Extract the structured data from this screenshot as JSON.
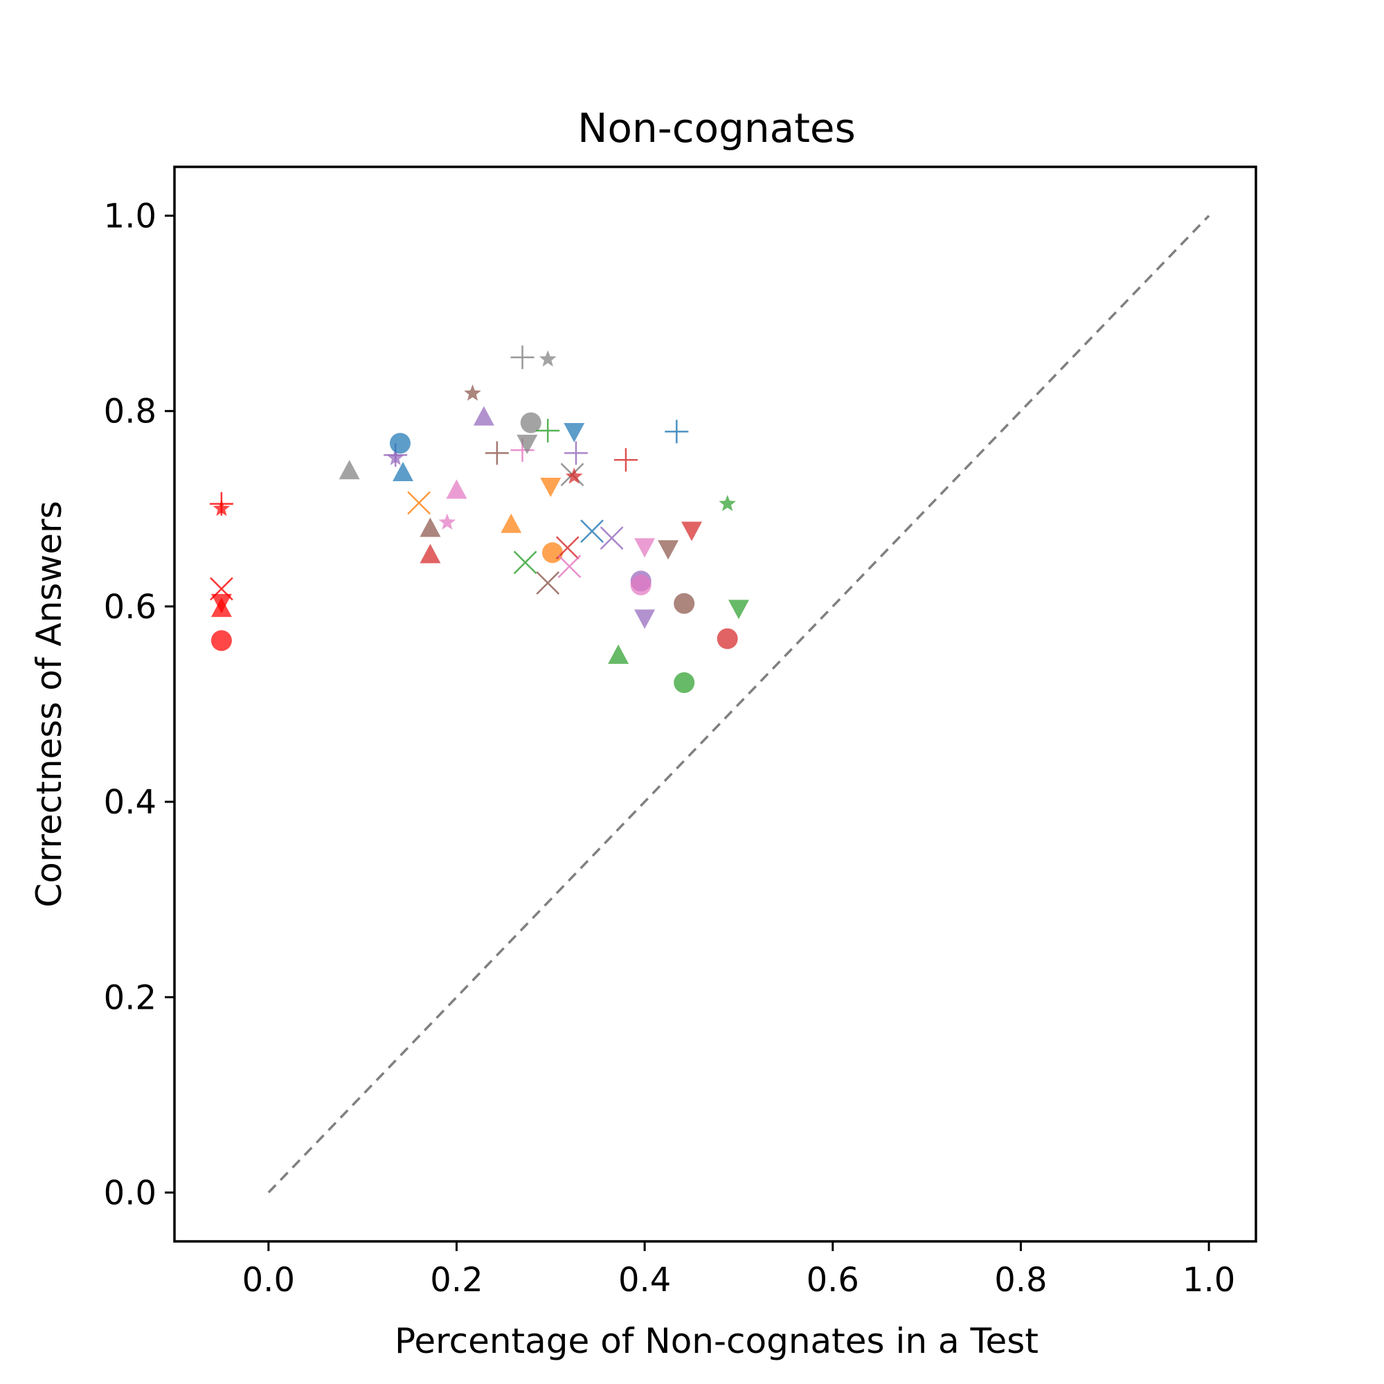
{
  "chart_data": {
    "type": "scatter",
    "title": "Non-cognates",
    "xlabel": "Percentage of Non-cognates in a Test",
    "ylabel": "Correctness of Answers",
    "xlim": [
      -0.1,
      1.05
    ],
    "ylim": [
      -0.05,
      1.05
    ],
    "xticks": [
      "0.0",
      "0.2",
      "0.4",
      "0.6",
      "0.8",
      "1.0"
    ],
    "yticks": [
      "0.0",
      "0.2",
      "0.4",
      "0.6",
      "0.8",
      "1.0"
    ],
    "xtick_values": [
      0.0,
      0.2,
      0.4,
      0.6,
      0.8,
      1.0
    ],
    "ytick_values": [
      0.0,
      0.2,
      0.4,
      0.6,
      0.8,
      1.0
    ],
    "grid": false,
    "legend": "none",
    "reference_line": {
      "from": [
        0.0,
        0.0
      ],
      "to": [
        1.0,
        1.0
      ],
      "style": "dashed",
      "color": "#808080"
    },
    "colors": {
      "blue": "#1f77b4",
      "orange": "#ff7f0e",
      "green": "#2ca02c",
      "red": "#d62728",
      "purple": "#9467bd",
      "brown": "#8c564b",
      "pink": "#e377c2",
      "gray": "#7f7f7f",
      "bright_red": "#ff0000"
    },
    "points": [
      {
        "x": -0.05,
        "y": 0.565,
        "marker": "circle",
        "color": "bright_red"
      },
      {
        "x": -0.05,
        "y": 0.597,
        "marker": "triangle-up",
        "color": "bright_red"
      },
      {
        "x": -0.05,
        "y": 0.605,
        "marker": "triangle-down",
        "color": "bright_red"
      },
      {
        "x": -0.05,
        "y": 0.618,
        "marker": "x",
        "color": "bright_red"
      },
      {
        "x": -0.05,
        "y": 0.705,
        "marker": "plus",
        "color": "bright_red"
      },
      {
        "x": -0.05,
        "y": 0.7,
        "marker": "star",
        "color": "bright_red"
      },
      {
        "x": 0.086,
        "y": 0.738,
        "marker": "triangle-up",
        "color": "gray"
      },
      {
        "x": 0.135,
        "y": 0.755,
        "marker": "plus",
        "color": "purple"
      },
      {
        "x": 0.135,
        "y": 0.752,
        "marker": "star",
        "color": "purple"
      },
      {
        "x": 0.14,
        "y": 0.767,
        "marker": "circle",
        "color": "blue"
      },
      {
        "x": 0.143,
        "y": 0.736,
        "marker": "triangle-up",
        "color": "blue"
      },
      {
        "x": 0.16,
        "y": 0.706,
        "marker": "x",
        "color": "orange"
      },
      {
        "x": 0.172,
        "y": 0.679,
        "marker": "triangle-up",
        "color": "brown"
      },
      {
        "x": 0.172,
        "y": 0.652,
        "marker": "triangle-up",
        "color": "red"
      },
      {
        "x": 0.19,
        "y": 0.686,
        "marker": "star",
        "color": "pink"
      },
      {
        "x": 0.2,
        "y": 0.718,
        "marker": "triangle-up",
        "color": "pink"
      },
      {
        "x": 0.217,
        "y": 0.818,
        "marker": "star",
        "color": "brown"
      },
      {
        "x": 0.229,
        "y": 0.793,
        "marker": "triangle-up",
        "color": "purple"
      },
      {
        "x": 0.243,
        "y": 0.757,
        "marker": "plus",
        "color": "brown"
      },
      {
        "x": 0.258,
        "y": 0.683,
        "marker": "triangle-up",
        "color": "orange"
      },
      {
        "x": 0.27,
        "y": 0.855,
        "marker": "plus",
        "color": "gray"
      },
      {
        "x": 0.27,
        "y": 0.76,
        "marker": "plus",
        "color": "pink"
      },
      {
        "x": 0.275,
        "y": 0.768,
        "marker": "triangle-down",
        "color": "gray"
      },
      {
        "x": 0.273,
        "y": 0.645,
        "marker": "x",
        "color": "green"
      },
      {
        "x": 0.279,
        "y": 0.788,
        "marker": "circle",
        "color": "gray"
      },
      {
        "x": 0.297,
        "y": 0.853,
        "marker": "star",
        "color": "gray"
      },
      {
        "x": 0.297,
        "y": 0.78,
        "marker": "plus",
        "color": "green"
      },
      {
        "x": 0.297,
        "y": 0.624,
        "marker": "x",
        "color": "brown"
      },
      {
        "x": 0.3,
        "y": 0.724,
        "marker": "triangle-down",
        "color": "orange"
      },
      {
        "x": 0.302,
        "y": 0.655,
        "marker": "circle",
        "color": "orange"
      },
      {
        "x": 0.318,
        "y": 0.66,
        "marker": "x",
        "color": "red"
      },
      {
        "x": 0.32,
        "y": 0.641,
        "marker": "x",
        "color": "pink"
      },
      {
        "x": 0.323,
        "y": 0.735,
        "marker": "x",
        "color": "gray"
      },
      {
        "x": 0.325,
        "y": 0.733,
        "marker": "star",
        "color": "red"
      },
      {
        "x": 0.325,
        "y": 0.78,
        "marker": "triangle-down",
        "color": "blue"
      },
      {
        "x": 0.327,
        "y": 0.757,
        "marker": "plus",
        "color": "purple"
      },
      {
        "x": 0.344,
        "y": 0.677,
        "marker": "x",
        "color": "blue"
      },
      {
        "x": 0.365,
        "y": 0.67,
        "marker": "x",
        "color": "purple"
      },
      {
        "x": 0.372,
        "y": 0.549,
        "marker": "triangle-up",
        "color": "green"
      },
      {
        "x": 0.38,
        "y": 0.75,
        "marker": "plus",
        "color": "red"
      },
      {
        "x": 0.396,
        "y": 0.626,
        "marker": "circle",
        "color": "purple"
      },
      {
        "x": 0.396,
        "y": 0.622,
        "marker": "circle",
        "color": "pink"
      },
      {
        "x": 0.4,
        "y": 0.662,
        "marker": "triangle-down",
        "color": "pink"
      },
      {
        "x": 0.4,
        "y": 0.589,
        "marker": "triangle-down",
        "color": "purple"
      },
      {
        "x": 0.425,
        "y": 0.66,
        "marker": "triangle-down",
        "color": "brown"
      },
      {
        "x": 0.434,
        "y": 0.779,
        "marker": "plus",
        "color": "blue"
      },
      {
        "x": 0.442,
        "y": 0.603,
        "marker": "circle",
        "color": "brown"
      },
      {
        "x": 0.442,
        "y": 0.522,
        "marker": "circle",
        "color": "green"
      },
      {
        "x": 0.45,
        "y": 0.679,
        "marker": "triangle-down",
        "color": "red"
      },
      {
        "x": 0.488,
        "y": 0.705,
        "marker": "star",
        "color": "green"
      },
      {
        "x": 0.488,
        "y": 0.567,
        "marker": "circle",
        "color": "red"
      },
      {
        "x": 0.5,
        "y": 0.599,
        "marker": "triangle-down",
        "color": "green"
      }
    ]
  }
}
